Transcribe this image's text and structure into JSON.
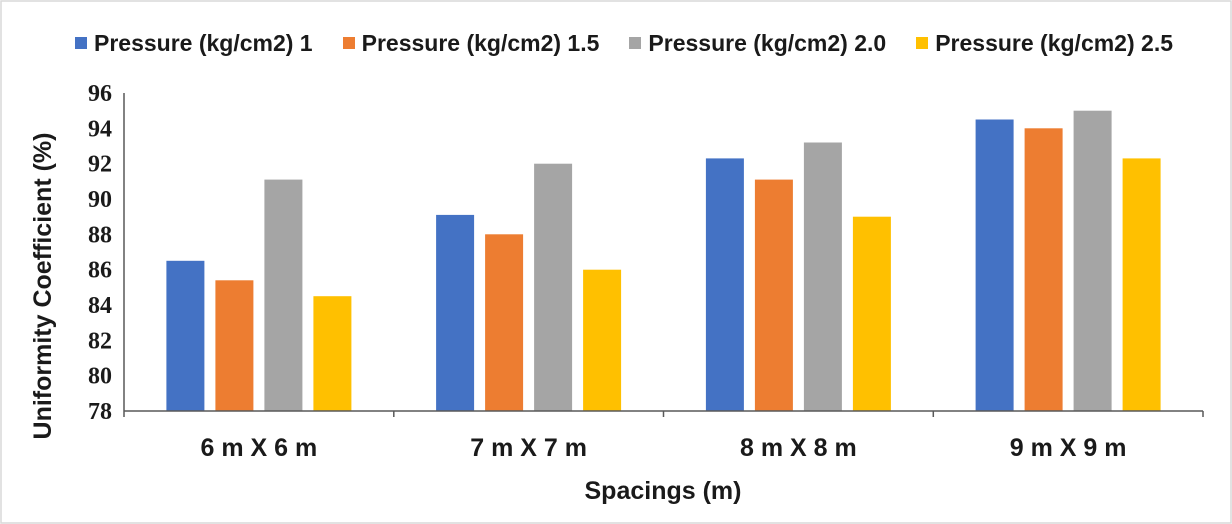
{
  "chart_data": {
    "type": "bar",
    "categories": [
      "6 m X 6 m",
      "7 m X 7 m",
      "8 m X 8 m",
      "9 m X 9 m"
    ],
    "series": [
      {
        "name": "Pressure (kg/cm2) 1",
        "color": "#4472C4",
        "values": [
          86.5,
          89.1,
          92.3,
          94.5
        ]
      },
      {
        "name": "Pressure (kg/cm2) 1.5",
        "color": "#ED7D31",
        "values": [
          85.4,
          88.0,
          91.1,
          94.0
        ]
      },
      {
        "name": "Pressure (kg/cm2) 2.0",
        "color": "#A5A5A5",
        "values": [
          91.1,
          92.0,
          93.2,
          95.0
        ]
      },
      {
        "name": "Pressure (kg/cm2) 2.5",
        "color": "#FFC000",
        "values": [
          84.5,
          86.0,
          89.0,
          92.3
        ]
      }
    ],
    "xlabel": "Spacings (m)",
    "ylabel": "Uniformity Coefficient (%)",
    "ylim": [
      78,
      96
    ],
    "yticks": [
      78,
      80,
      82,
      84,
      86,
      88,
      90,
      92,
      94,
      96
    ],
    "grid": false,
    "legend": "top"
  }
}
